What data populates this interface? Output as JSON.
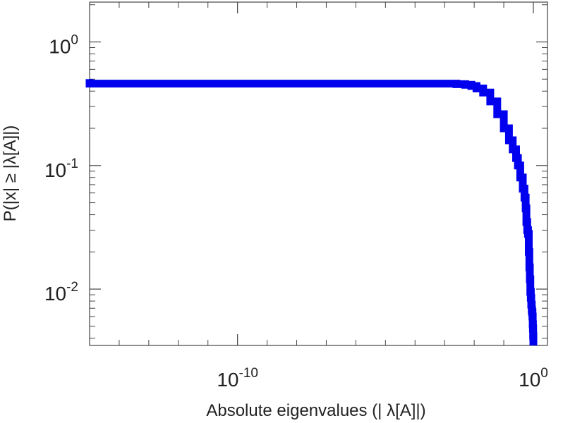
{
  "chart_data": {
    "type": "line",
    "title": "",
    "xlabel": "Absolute eigenvalues (|     λ[A]|)",
    "ylabel": "P(|x|  ≥ |λ[A]|)",
    "x_scale": "log",
    "y_scale": "log",
    "xlim": [
      1e-15,
      3
    ],
    "ylim": [
      0.0035,
      2.1
    ],
    "x_ticks": [
      {
        "base": "10",
        "exp": "-10",
        "value": 1e-10
      },
      {
        "base": "10",
        "exp": "0",
        "value": 1
      }
    ],
    "y_ticks": [
      {
        "base": "10",
        "exp": "0",
        "value": 1
      },
      {
        "base": "10",
        "exp": "-1",
        "value": 0.1
      },
      {
        "base": "10",
        "exp": "-2",
        "value": 0.01
      }
    ],
    "grid": false,
    "series": [
      {
        "color": "#0000ee",
        "x": [
          1e-15,
          1e-15,
          1.2e-15,
          1e-12,
          1e-09,
          1e-06,
          0.0001,
          0.001,
          0.0025,
          0.005,
          0.008,
          0.012,
          0.02,
          0.035,
          0.06,
          0.1,
          0.15,
          0.2,
          0.26,
          0.3,
          0.36,
          0.44,
          0.5,
          0.55,
          0.58,
          0.62,
          0.66,
          0.7,
          0.73,
          0.76,
          0.79,
          0.82,
          0.85,
          0.88,
          0.9,
          0.93,
          0.95,
          0.97,
          0.985,
          1.0
        ],
        "y": [
          0.5,
          0.46,
          0.46,
          0.46,
          0.46,
          0.46,
          0.46,
          0.46,
          0.455,
          0.45,
          0.44,
          0.42,
          0.39,
          0.33,
          0.26,
          0.2,
          0.16,
          0.135,
          0.115,
          0.1,
          0.08,
          0.065,
          0.055,
          0.045,
          0.035,
          0.03,
          0.028,
          0.02,
          0.015,
          0.012,
          0.0095,
          0.0085,
          0.0075,
          0.0068,
          0.0065,
          0.006,
          0.0052,
          0.0048,
          0.0042,
          0.0035
        ]
      }
    ]
  }
}
